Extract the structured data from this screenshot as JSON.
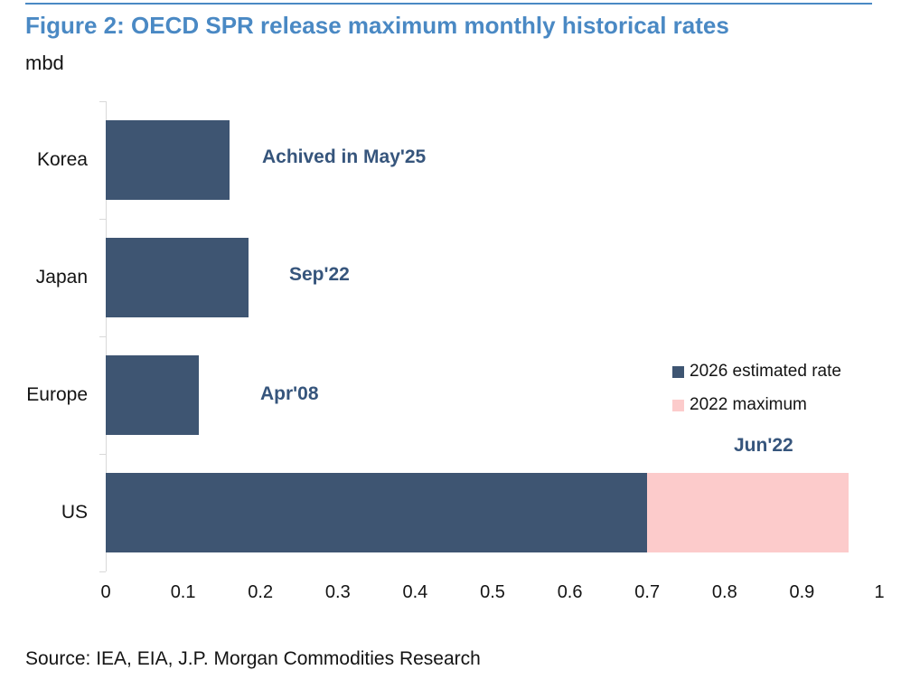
{
  "title": "Figure 2: OECD SPR release maximum monthly historical rates",
  "unit_label": "mbd",
  "source": "Source: IEA, EIA, J.P. Morgan Commodities Research",
  "colors": {
    "accent_blue": "#4A89C4",
    "bar_navy": "#3E5572",
    "bar_pink": "#FCCBCB",
    "annotation_navy": "#36557C",
    "axis_gray": "#D9D9D9",
    "text_black": "#141414"
  },
  "legend": [
    {
      "label": "2026 estimated rate",
      "color_key": "bar_navy"
    },
    {
      "label": "2022 maximum",
      "color_key": "bar_pink"
    }
  ],
  "chart_data": {
    "type": "bar",
    "orientation": "horizontal",
    "title": "Figure 2: OECD SPR release maximum monthly historical rates",
    "xlabel": "mbd",
    "ylabel": "",
    "xlim": [
      0,
      1
    ],
    "x_ticks": [
      "0",
      "0.1",
      "0.2",
      "0.3",
      "0.4",
      "0.5",
      "0.6",
      "0.7",
      "0.8",
      "0.9",
      "1"
    ],
    "grid": false,
    "legend_position": "middle-right",
    "categories": [
      "Korea",
      "Japan",
      "Europe",
      "US"
    ],
    "series": [
      {
        "name": "2026 estimated rate",
        "color_key": "bar_navy",
        "values": [
          0.16,
          0.185,
          0.12,
          0.7
        ]
      },
      {
        "name": "2022 maximum",
        "color_key": "bar_pink",
        "stacked_on_previous": true,
        "values": [
          null,
          null,
          null,
          0.96
        ]
      }
    ],
    "annotations": [
      {
        "category": "Korea",
        "text": "Achived in May'25"
      },
      {
        "category": "Japan",
        "text": "Sep'22"
      },
      {
        "category": "Europe",
        "text": "Apr'08"
      },
      {
        "category": "US",
        "text": "Jun'22"
      }
    ]
  }
}
